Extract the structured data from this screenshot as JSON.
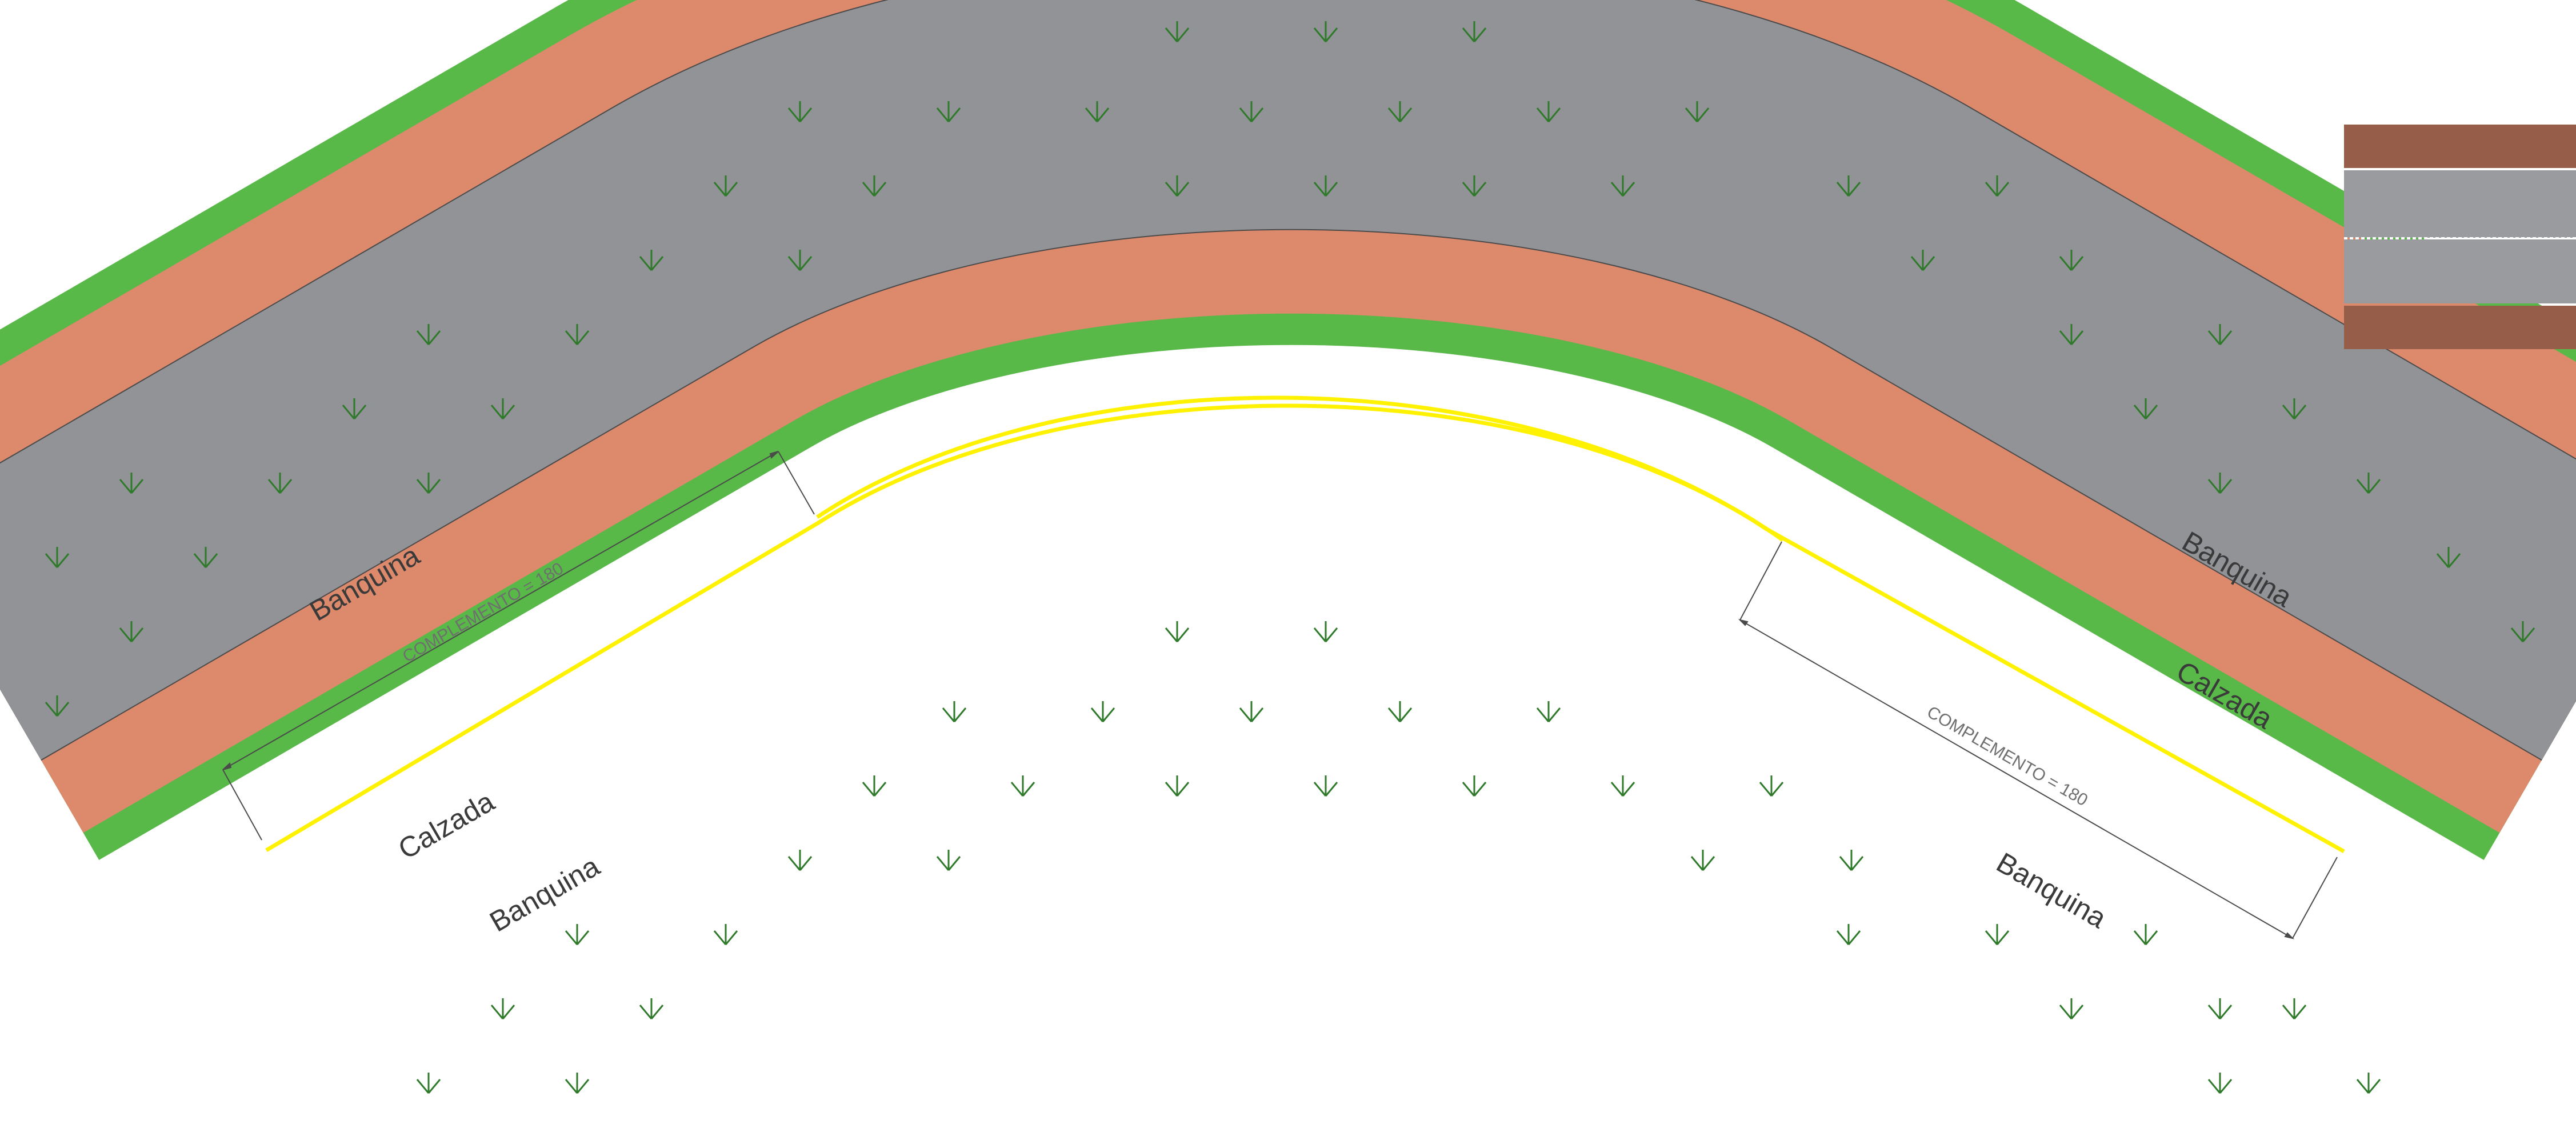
{
  "labels": {
    "shoulder_top_left": "Banquina",
    "shoulder_bottom_left": "Banquina",
    "shoulder_top_right": "Banquina",
    "shoulder_bottom_right": "Banquina",
    "carriageway_left": "Calzada",
    "carriageway_right": "Calzada",
    "complement_left": "COMPLEMENTO = 180",
    "complement_right": "COMPLEMENTO = 180"
  },
  "colors": {
    "grass": "#58b948",
    "shoulder": "#dd896c",
    "carriageway": "#929397",
    "no_passing_line": "#fff200",
    "center_dash": "#ffffff",
    "legend_shoulder": "#965d48",
    "legend_lane": "#9a9b9f"
  },
  "icons": [
    "grass-tuft-icon"
  ]
}
